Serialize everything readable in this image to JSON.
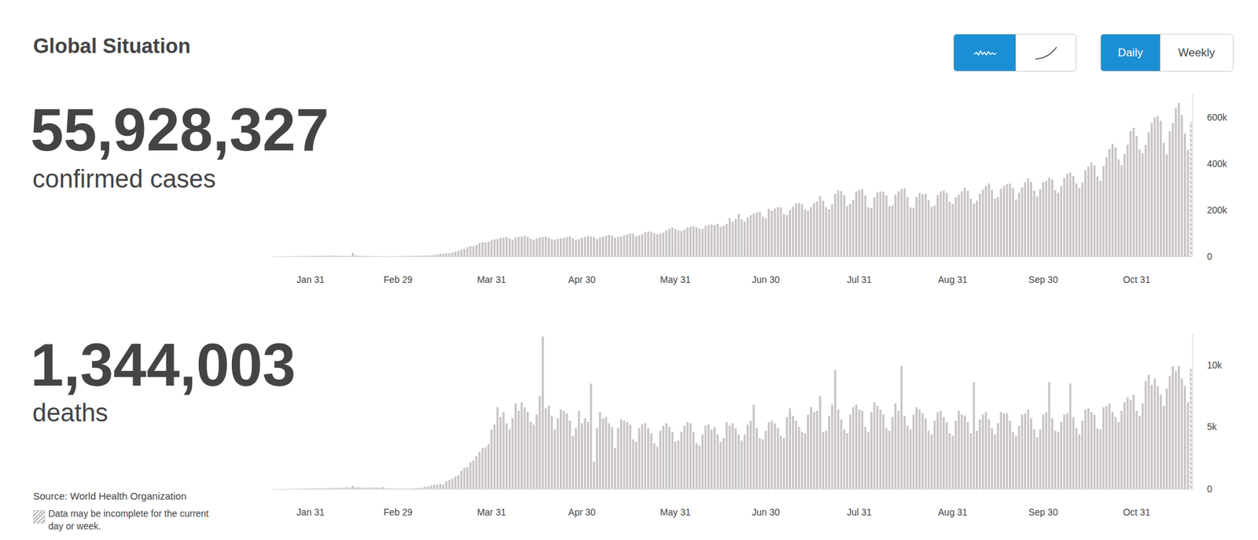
{
  "title": "Global Situation",
  "toggles": {
    "view": [
      "Daily",
      "Weekly"
    ],
    "selected": "Daily"
  },
  "source": "Source: World Health Organization",
  "note": "Data may be incomplete for the current day or week.",
  "chart_data": [
    {
      "type": "bar",
      "total": 55928327,
      "title": "confirmed cases",
      "categories": [
        null,
        null,
        null,
        null,
        null,
        null,
        null,
        null,
        null,
        null,
        null,
        null,
        "Jan 31",
        null,
        null,
        null,
        null,
        null,
        null,
        null,
        null,
        null,
        null,
        null,
        null,
        null,
        null,
        null,
        null,
        null,
        null,
        null,
        null,
        null,
        null,
        null,
        null,
        null,
        null,
        null,
        null,
        "Feb 29",
        null,
        null,
        null,
        null,
        null,
        null,
        null,
        null,
        null,
        null,
        null,
        null,
        null,
        null,
        null,
        null,
        null,
        null,
        null,
        null,
        null,
        null,
        null,
        null,
        null,
        null,
        null,
        null,
        null,
        null,
        "Mar 31",
        null,
        null,
        null,
        null,
        null,
        null,
        null,
        null,
        null,
        null,
        null,
        null,
        null,
        null,
        null,
        null,
        null,
        null,
        null,
        null,
        null,
        null,
        null,
        null,
        null,
        null,
        null,
        null,
        null,
        "Apr 30",
        null,
        null,
        null,
        null,
        null,
        null,
        null,
        null,
        null,
        null,
        null,
        null,
        null,
        null,
        null,
        null,
        null,
        null,
        null,
        null,
        null,
        null,
        null,
        null,
        null,
        null,
        null,
        null,
        null,
        null,
        "May 31",
        null,
        null,
        null,
        null,
        null,
        null,
        null,
        null,
        null,
        null,
        null,
        null,
        null,
        null,
        null,
        null,
        null,
        null,
        null,
        null,
        null,
        null,
        null,
        null,
        null,
        null,
        null,
        null,
        null,
        "Jun 30",
        null,
        null,
        null,
        null,
        null,
        null,
        null,
        null,
        null,
        null,
        null,
        null,
        null,
        null,
        null,
        null,
        null,
        null,
        null,
        null,
        null,
        null,
        null,
        null,
        null,
        null,
        null,
        null,
        null,
        null,
        "Jul 31",
        null,
        null,
        null,
        null,
        null,
        null,
        null,
        null,
        null,
        null,
        null,
        null,
        null,
        null,
        null,
        null,
        null,
        null,
        null,
        null,
        null,
        null,
        null,
        null,
        null,
        null,
        null,
        null,
        null,
        null,
        "Aug 31",
        null,
        null,
        null,
        null,
        null,
        null,
        null,
        null,
        null,
        null,
        null,
        null,
        null,
        null,
        null,
        null,
        null,
        null,
        null,
        null,
        null,
        null,
        null,
        null,
        null,
        null,
        null,
        null,
        null,
        "Sep 30",
        null,
        null,
        null,
        null,
        null,
        null,
        null,
        null,
        null,
        null,
        null,
        null,
        null,
        null,
        null,
        null,
        null,
        null,
        null,
        null,
        null,
        null,
        null,
        null,
        null,
        null,
        null,
        null,
        null,
        null,
        "Oct 31",
        null,
        null,
        null,
        null,
        null,
        null,
        null,
        null,
        null,
        null,
        null,
        null,
        null,
        null,
        null,
        null,
        null,
        null
      ],
      "values": [
        100,
        150,
        250,
        300,
        550,
        650,
        750,
        1500,
        1800,
        1500,
        1700,
        2000,
        2100,
        2600,
        2900,
        3200,
        3900,
        3700,
        3200,
        3900,
        3700,
        3100,
        2700,
        3000,
        2500,
        2100,
        15200,
        5100,
        2600,
        2200,
        2100,
        1900,
        1800,
        1000,
        600,
        1000,
        900,
        800,
        600,
        900,
        1100,
        1500,
        1900,
        2000,
        1800,
        2300,
        2500,
        2800,
        3700,
        3900,
        3700,
        4200,
        4600,
        7200,
        8800,
        10900,
        11500,
        13900,
        14000,
        16000,
        20000,
        25000,
        29000,
        33000,
        40000,
        45000,
        43000,
        49000,
        58000,
        62000,
        60000,
        63000,
        70000,
        74000,
        76000,
        79000,
        80000,
        83000,
        78000,
        71000,
        80000,
        84000,
        86000,
        90000,
        85000,
        76000,
        72000,
        78000,
        82000,
        84000,
        85000,
        80000,
        74000,
        73000,
        76000,
        78000,
        80000,
        84000,
        86000,
        77000,
        72000,
        75000,
        80000,
        84000,
        88000,
        86000,
        83000,
        75000,
        82000,
        86000,
        89000,
        93000,
        90000,
        80000,
        84000,
        86000,
        91000,
        95000,
        99000,
        97000,
        87000,
        91000,
        96000,
        104000,
        107000,
        106000,
        100000,
        95000,
        97000,
        103000,
        112000,
        120000,
        125000,
        118000,
        112000,
        110000,
        115000,
        125000,
        128000,
        131000,
        126000,
        120000,
        118000,
        131000,
        136000,
        138000,
        135000,
        140000,
        128000,
        133000,
        141000,
        165000,
        150000,
        161000,
        183000,
        160000,
        150000,
        168000,
        178000,
        185000,
        189000,
        192000,
        172000,
        165000,
        205000,
        198000,
        207000,
        212000,
        211000,
        183000,
        178000,
        200000,
        215000,
        228000,
        231000,
        225000,
        202000,
        197000,
        212000,
        230000,
        237000,
        259000,
        240000,
        212000,
        203000,
        225000,
        270000,
        284000,
        282000,
        264000,
        217000,
        228000,
        244000,
        280000,
        287000,
        290000,
        263000,
        212000,
        209000,
        255000,
        276000,
        280000,
        279000,
        263000,
        216000,
        220000,
        266000,
        280000,
        292000,
        293000,
        256000,
        211000,
        210000,
        256000,
        273000,
        268000,
        270000,
        244000,
        215000,
        220000,
        265000,
        280000,
        284000,
        275000,
        236000,
        226000,
        255000,
        266000,
        280000,
        296000,
        283000,
        249000,
        228000,
        241000,
        270000,
        288000,
        304000,
        315000,
        287000,
        249000,
        256000,
        291000,
        304000,
        312000,
        314000,
        295000,
        245000,
        275000,
        298000,
        320000,
        336000,
        322000,
        284000,
        258000,
        290000,
        320000,
        325000,
        340000,
        331000,
        287000,
        275000,
        304000,
        338000,
        356000,
        361000,
        347000,
        315000,
        295000,
        319000,
        372000,
        388000,
        405000,
        392000,
        345000,
        326000,
        389000,
        428000,
        463000,
        485000,
        470000,
        418000,
        394000,
        442000,
        481000,
        540000,
        555000,
        520000,
        460000,
        445000,
        480000,
        535000,
        575000,
        600000,
        605000,
        585000,
        490000,
        440000,
        540000,
        575000,
        640000,
        662000,
        610000,
        530000,
        460000,
        580000
      ],
      "color": "#c9c4c4",
      "ylim": [
        0,
        700000
      ],
      "yticks": [
        0,
        {
          "value": 200000,
          "label": "200k"
        },
        {
          "value": 400000,
          "label": "400k"
        },
        {
          "value": 600000,
          "label": "600k"
        }
      ],
      "grid": false
    },
    {
      "type": "bar",
      "total": 1344003,
      "title": "deaths",
      "categories": [
        null,
        null,
        null,
        null,
        null,
        null,
        null,
        null,
        null,
        null,
        null,
        null,
        "Jan 31",
        null,
        null,
        null,
        null,
        null,
        null,
        null,
        null,
        null,
        null,
        null,
        null,
        null,
        null,
        null,
        null,
        null,
        null,
        null,
        null,
        null,
        null,
        null,
        null,
        null,
        null,
        null,
        null,
        "Feb 29",
        null,
        null,
        null,
        null,
        null,
        null,
        null,
        null,
        null,
        null,
        null,
        null,
        null,
        null,
        null,
        null,
        null,
        null,
        null,
        null,
        null,
        null,
        null,
        null,
        null,
        null,
        null,
        null,
        null,
        null,
        "Mar 31",
        null,
        null,
        null,
        null,
        null,
        null,
        null,
        null,
        null,
        null,
        null,
        null,
        null,
        null,
        null,
        null,
        null,
        null,
        null,
        null,
        null,
        null,
        null,
        null,
        null,
        null,
        null,
        null,
        null,
        "Apr 30",
        null,
        null,
        null,
        null,
        null,
        null,
        null,
        null,
        null,
        null,
        null,
        null,
        null,
        null,
        null,
        null,
        null,
        null,
        null,
        null,
        null,
        null,
        null,
        null,
        null,
        null,
        null,
        null,
        null,
        null,
        "May 31",
        null,
        null,
        null,
        null,
        null,
        null,
        null,
        null,
        null,
        null,
        null,
        null,
        null,
        null,
        null,
        null,
        null,
        null,
        null,
        null,
        null,
        null,
        null,
        null,
        null,
        null,
        null,
        null,
        null,
        "Jun 30",
        null,
        null,
        null,
        null,
        null,
        null,
        null,
        null,
        null,
        null,
        null,
        null,
        null,
        null,
        null,
        null,
        null,
        null,
        null,
        null,
        null,
        null,
        null,
        null,
        null,
        null,
        null,
        null,
        null,
        null,
        "Jul 31",
        null,
        null,
        null,
        null,
        null,
        null,
        null,
        null,
        null,
        null,
        null,
        null,
        null,
        null,
        null,
        null,
        null,
        null,
        null,
        null,
        null,
        null,
        null,
        null,
        null,
        null,
        null,
        null,
        null,
        null,
        "Aug 31",
        null,
        null,
        null,
        null,
        null,
        null,
        null,
        null,
        null,
        null,
        null,
        null,
        null,
        null,
        null,
        null,
        null,
        null,
        null,
        null,
        null,
        null,
        null,
        null,
        null,
        null,
        null,
        null,
        null,
        "Sep 30",
        null,
        null,
        null,
        null,
        null,
        null,
        null,
        null,
        null,
        null,
        null,
        null,
        null,
        null,
        null,
        null,
        null,
        null,
        null,
        null,
        null,
        null,
        null,
        null,
        null,
        null,
        null,
        null,
        null,
        null,
        "Oct 31",
        null,
        null,
        null,
        null,
        null,
        null,
        null,
        null,
        null,
        null,
        null,
        null,
        null,
        null,
        null,
        null,
        null,
        null
      ],
      "values": [
        3,
        3,
        6,
        9,
        8,
        16,
        15,
        24,
        26,
        26,
        38,
        43,
        46,
        45,
        57,
        64,
        65,
        73,
        73,
        86,
        89,
        97,
        108,
        97,
        146,
        121,
        254,
        143,
        142,
        105,
        98,
        139,
        115,
        118,
        109,
        97,
        150,
        71,
        52,
        29,
        44,
        47,
        35,
        42,
        31,
        38,
        52,
        56,
        82,
        104,
        178,
        190,
        278,
        335,
        355,
        412,
        370,
        620,
        720,
        840,
        990,
        1100,
        1460,
        1700,
        1760,
        2150,
        2300,
        2650,
        3000,
        3300,
        3350,
        3600,
        4800,
        5200,
        6600,
        5800,
        6200,
        5300,
        4800,
        5700,
        6900,
        6300,
        7000,
        6600,
        6200,
        5400,
        5200,
        6000,
        7500,
        12300,
        6500,
        6700,
        5900,
        4800,
        5700,
        6400,
        6300,
        6100,
        5500,
        4300,
        4900,
        6300,
        5300,
        5700,
        5400,
        8500,
        2200,
        4900,
        6200,
        5700,
        5800,
        5300,
        5000,
        3300,
        4900,
        5600,
        5500,
        5400,
        5200,
        4000,
        3800,
        4900,
        5200,
        5300,
        4900,
        4500,
        3700,
        3400,
        4700,
        5100,
        5300,
        5000,
        4600,
        3800,
        3900,
        4600,
        5100,
        5400,
        5300,
        4600,
        3700,
        3500,
        4400,
        5100,
        5200,
        4800,
        5000,
        4400,
        3800,
        4100,
        5400,
        5100,
        5300,
        4900,
        4400,
        3900,
        4400,
        5200,
        5500,
        6800,
        4900,
        4100,
        4000,
        4700,
        5400,
        5500,
        5300,
        4900,
        4300,
        4100,
        5800,
        6500,
        5900,
        5500,
        5000,
        4600,
        4500,
        6000,
        6600,
        6200,
        6300,
        7500,
        4600,
        4700,
        5900,
        6800,
        9600,
        6400,
        5600,
        4800,
        4500,
        6000,
        6600,
        6800,
        6400,
        6300,
        5000,
        4600,
        6200,
        7000,
        6700,
        6400,
        6000,
        4900,
        4700,
        5800,
        6900,
        6300,
        9900,
        5900,
        5100,
        4800,
        6000,
        6600,
        6400,
        6100,
        5700,
        4700,
        4400,
        5500,
        6200,
        6300,
        5800,
        5400,
        4500,
        4300,
        5500,
        6300,
        6000,
        5900,
        5400,
        4500,
        8600,
        4700,
        5600,
        6000,
        6200,
        5600,
        4900,
        4400,
        5300,
        6200,
        6100,
        6100,
        5500,
        4600,
        4300,
        5100,
        6000,
        6100,
        6400,
        5700,
        4800,
        4200,
        4800,
        6000,
        6200,
        8600,
        5700,
        4700,
        4600,
        5400,
        6000,
        6100,
        8500,
        5800,
        4900,
        4400,
        5500,
        6400,
        6500,
        6200,
        6000,
        4900,
        4800,
        6600,
        6700,
        6900,
        6200,
        5800,
        5400,
        6300,
        7000,
        7400,
        7200,
        7600,
        6300,
        5900,
        6900,
        8700,
        9200,
        8400,
        8900,
        8300,
        7600,
        6700,
        8100,
        9100,
        9900,
        9500,
        9900,
        8900,
        8300,
        7000,
        9700
      ],
      "color": "#c9c4c4",
      "ylim": [
        0,
        12500
      ],
      "yticks": [
        0,
        {
          "value": 5000,
          "label": "5k"
        },
        {
          "value": 10000,
          "label": "10k"
        }
      ],
      "grid": false
    }
  ]
}
